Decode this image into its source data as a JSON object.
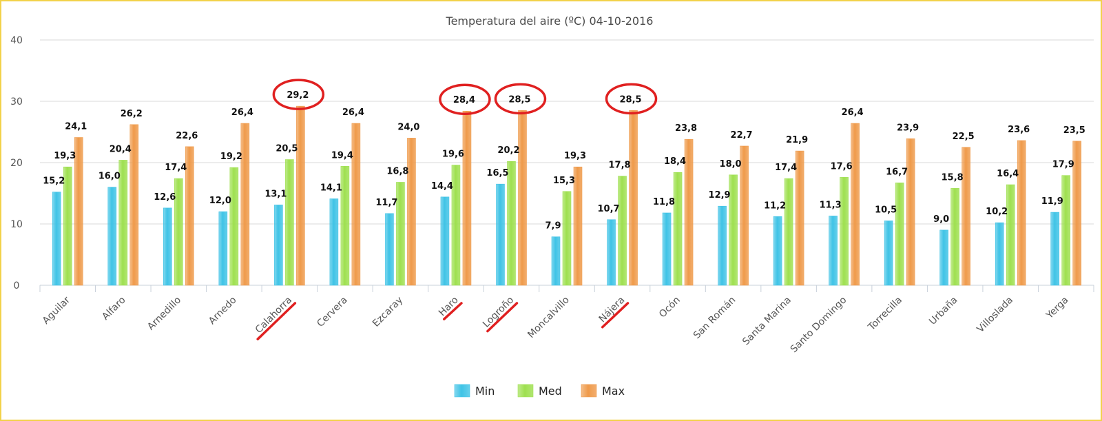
{
  "chart_data": {
    "type": "bar",
    "title": "Temperatura del aire (ºC) 04-10-2016",
    "xlabel": "",
    "ylabel": "",
    "ylim": [
      0,
      40
    ],
    "yticks": [
      "0",
      "10",
      "20",
      "30",
      "40"
    ],
    "grid": true,
    "legend_position": "bottom",
    "categories": [
      "Aguilar",
      "Alfaro",
      "Arnedillo",
      "Arnedo",
      "Calahorra",
      "Cervera",
      "Ezcaray",
      "Haro",
      "Logroño",
      "Moncalvillo",
      "Nájera",
      "Ocón",
      "San Román",
      "Santa Marina",
      "Santo Domingo",
      "Torrecilla",
      "Urbaña",
      "Villoslada",
      "Yerga"
    ],
    "series": [
      {
        "name": "Min",
        "color": "#3fc3e6",
        "values": [
          15.2,
          16.0,
          12.6,
          12.0,
          13.1,
          14.1,
          11.7,
          14.4,
          16.5,
          7.9,
          10.7,
          11.8,
          12.9,
          11.2,
          11.3,
          10.5,
          9.0,
          10.2,
          11.9
        ],
        "labels": [
          "15,2",
          "16,0",
          "12,6",
          "12,0",
          "13,1",
          "14,1",
          "11,7",
          "14,4",
          "16,5",
          "7,9",
          "10,7",
          "11,8",
          "12,9",
          "11,2",
          "11,3",
          "10,5",
          "9,0",
          "10,2",
          "11,9"
        ]
      },
      {
        "name": "Med",
        "color": "#9ee04f",
        "values": [
          19.3,
          20.4,
          17.4,
          19.2,
          20.5,
          19.4,
          16.8,
          19.6,
          20.2,
          15.3,
          17.8,
          18.4,
          18.0,
          17.4,
          17.6,
          16.7,
          15.8,
          16.4,
          17.9
        ],
        "labels": [
          "19,3",
          "20,4",
          "17,4",
          "19,2",
          "20,5",
          "19,4",
          "16,8",
          "19,6",
          "20,2",
          "15,3",
          "17,8",
          "18,4",
          "18,0",
          "17,4",
          "17,6",
          "16,7",
          "15,8",
          "16,4",
          "17,9"
        ]
      },
      {
        "name": "Max",
        "color": "#ef9a4a",
        "values": [
          24.1,
          26.2,
          22.6,
          26.4,
          29.2,
          26.4,
          24.0,
          28.4,
          28.5,
          19.3,
          28.5,
          23.8,
          22.7,
          21.9,
          26.4,
          23.9,
          22.5,
          23.6,
          23.5
        ],
        "labels": [
          "24,1",
          "26,2",
          "22,6",
          "26,4",
          "29,2",
          "26,4",
          "24,0",
          "28,4",
          "28,5",
          "19,3",
          "28,5",
          "23,8",
          "22,7",
          "21,9",
          "26,4",
          "23,9",
          "22,5",
          "23,6",
          "23,5"
        ]
      }
    ],
    "annotations": {
      "circled_values": [
        "Calahorra",
        "Haro",
        "Logroño",
        "Nájera"
      ],
      "underlined_categories": [
        "Calahorra",
        "Haro",
        "Logroño",
        "Nájera"
      ],
      "color": "#e02020"
    }
  }
}
